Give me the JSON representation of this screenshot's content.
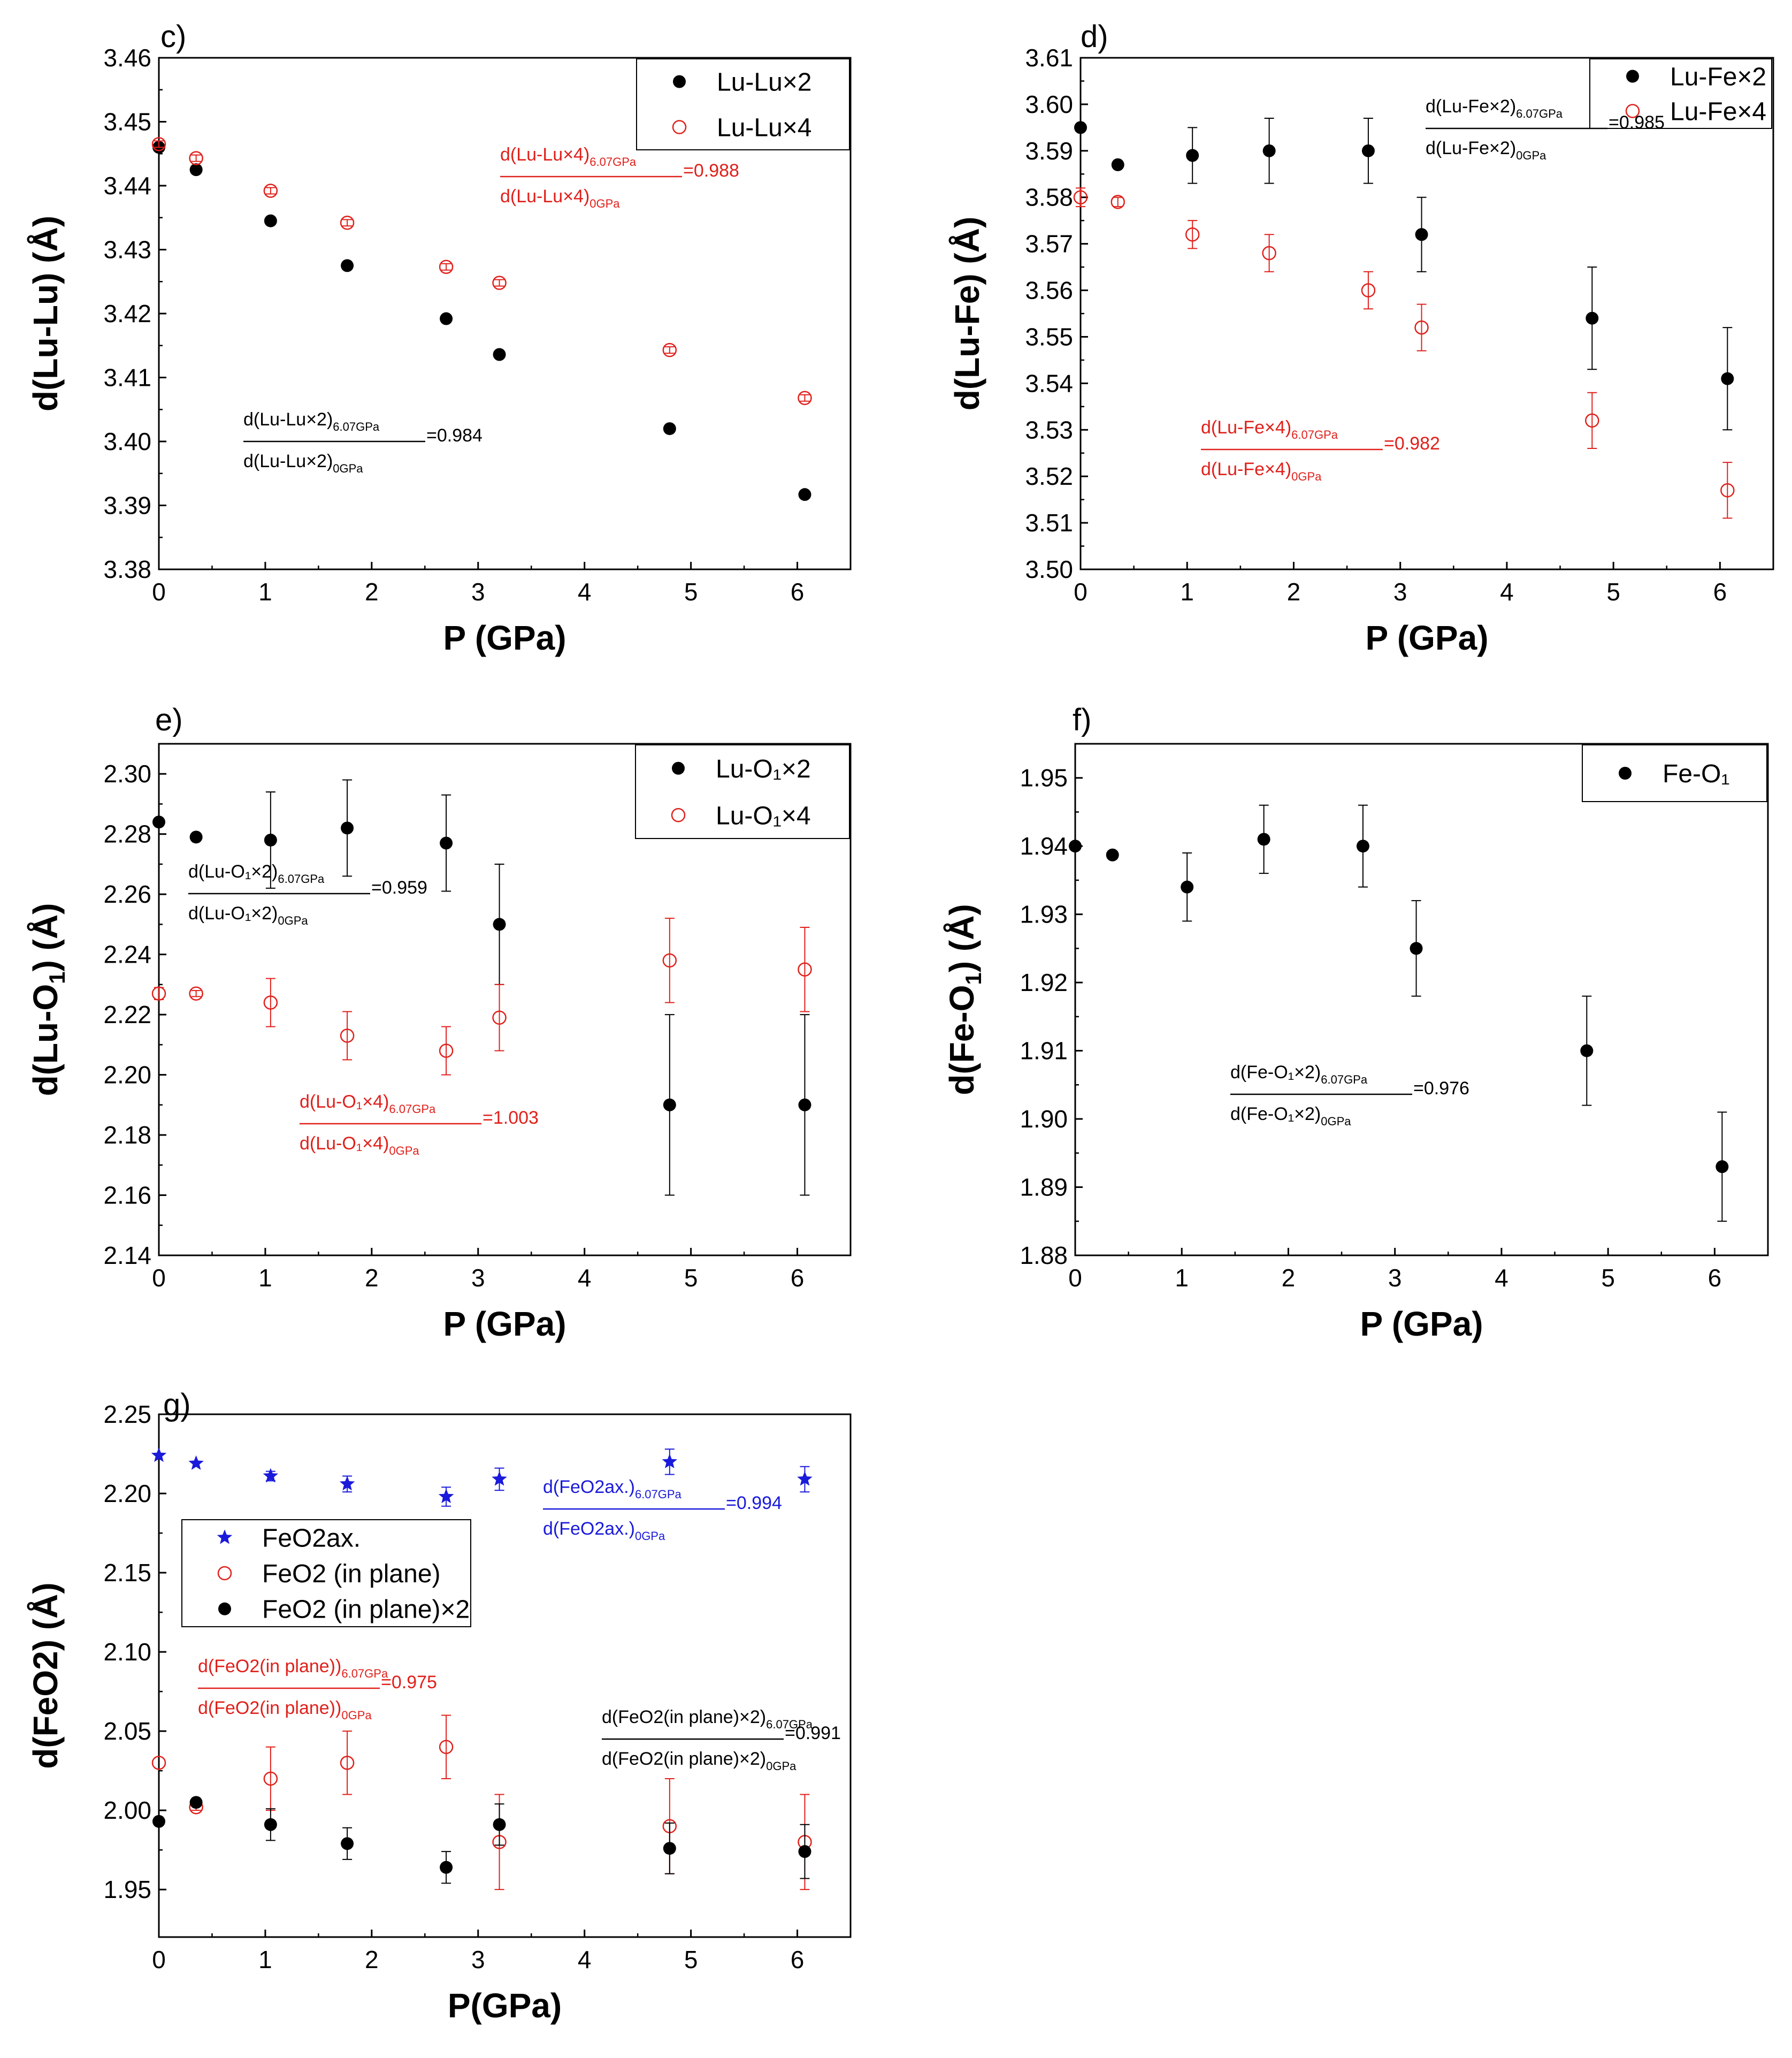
{
  "chart_data": [
    {
      "type": "scatter",
      "panel_label": "c)",
      "xlabel": "P (GPa)",
      "ylabel_parts": [
        "d(Lu-Lu) (Å)"
      ],
      "xlim": [
        0,
        6.5
      ],
      "ylim": [
        3.38,
        3.46
      ],
      "xticks": [
        "0",
        "1",
        "2",
        "3",
        "4",
        "5",
        "6"
      ],
      "yticks": [
        "3.38",
        "3.39",
        "3.40",
        "3.41",
        "3.42",
        "3.43",
        "3.44",
        "3.45",
        "3.46"
      ],
      "legend": [
        "Lu-Lu×2",
        "Lu-Lu×4"
      ],
      "series": [
        {
          "name": "Lu-Lu×2",
          "marker": "filled",
          "color": "#000000",
          "x": [
            0,
            0.35,
            1.05,
            1.77,
            2.7,
            3.2,
            4.8,
            6.07
          ],
          "y": [
            3.446,
            3.4425,
            3.4345,
            3.4275,
            3.4192,
            3.4136,
            3.402,
            3.3917
          ],
          "err": [
            0,
            0,
            0,
            0,
            0,
            0,
            0,
            0
          ]
        },
        {
          "name": "Lu-Lu×4",
          "marker": "open",
          "color": "#e0201b",
          "x": [
            0,
            0.35,
            1.05,
            1.77,
            2.7,
            3.2,
            4.8,
            6.07
          ],
          "y": [
            3.4465,
            3.4443,
            3.4392,
            3.4342,
            3.4273,
            3.4248,
            3.4143,
            3.4068
          ],
          "err": [
            0.0005,
            0.0005,
            0.0005,
            0.0005,
            0.0005,
            0.0005,
            0.0005,
            0.0005
          ]
        }
      ],
      "annotations": [
        {
          "num": "d(Lu-Lu×4)",
          "den": "d(Lu-Lu×4)",
          "sub_num": "6.07GPa",
          "sub_den": "0GPa",
          "ratio": "=0.988",
          "color": "#e0201b"
        },
        {
          "num": "d(Lu-Lu×2)",
          "den": "d(Lu-Lu×2)",
          "sub_num": "6.07GPa",
          "sub_den": "0GPa",
          "ratio": "=0.984",
          "color": "#000000"
        }
      ]
    },
    {
      "type": "scatter",
      "panel_label": "d)",
      "xlabel": "P (GPa)",
      "ylabel_parts": [
        "d(Lu-Fe) (Å)"
      ],
      "xlim": [
        0,
        6.5
      ],
      "ylim": [
        3.5,
        3.61
      ],
      "xticks": [
        "0",
        "1",
        "2",
        "3",
        "4",
        "5",
        "6"
      ],
      "yticks": [
        "3.50",
        "3.51",
        "3.52",
        "3.53",
        "3.54",
        "3.55",
        "3.56",
        "3.57",
        "3.58",
        "3.59",
        "3.60",
        "3.61"
      ],
      "legend": [
        "Lu-Fe×2",
        "Lu-Fe×4"
      ],
      "series": [
        {
          "name": "Lu-Fe×2",
          "marker": "filled",
          "color": "#000000",
          "x": [
            0,
            0.35,
            1.05,
            1.77,
            2.7,
            3.2,
            4.8,
            6.07
          ],
          "y": [
            3.595,
            3.587,
            3.589,
            3.59,
            3.59,
            3.572,
            3.554,
            3.541
          ],
          "err": [
            0,
            0,
            0.006,
            0.007,
            0.007,
            0.008,
            0.011,
            0.011
          ]
        },
        {
          "name": "Lu-Fe×4",
          "marker": "open",
          "color": "#e0201b",
          "x": [
            0,
            0.35,
            1.05,
            1.77,
            2.7,
            3.2,
            4.8,
            6.07
          ],
          "y": [
            3.58,
            3.579,
            3.572,
            3.568,
            3.56,
            3.552,
            3.532,
            3.517
          ],
          "err": [
            0.002,
            0.001,
            0.003,
            0.004,
            0.004,
            0.005,
            0.006,
            0.006
          ]
        }
      ],
      "annotations": [
        {
          "num": "d(Lu-Fe×2)",
          "den": "d(Lu-Fe×2)",
          "sub_num": "6.07GPa",
          "sub_den": "0GPa",
          "ratio": "=0.985",
          "color": "#000000"
        },
        {
          "num": "d(Lu-Fe×4)",
          "den": "d(Lu-Fe×4)",
          "sub_num": "6.07GPa",
          "sub_den": "0GPa",
          "ratio": "=0.982",
          "color": "#e0201b"
        }
      ]
    },
    {
      "type": "scatter",
      "panel_label": "e)",
      "xlabel": "P (GPa)",
      "ylabel_parts": [
        "d(Lu-O",
        "1",
        ") (Å)"
      ],
      "xlim": [
        0,
        6.5
      ],
      "ylim": [
        2.14,
        2.31
      ],
      "xticks": [
        "0",
        "1",
        "2",
        "3",
        "4",
        "5",
        "6"
      ],
      "yticks": [
        "2.14",
        "2.16",
        "2.18",
        "2.20",
        "2.22",
        "2.24",
        "2.26",
        "2.28",
        "2.30"
      ],
      "legend": [
        "Lu-O₁×2",
        "Lu-O₁×4"
      ],
      "series": [
        {
          "name": "Lu-O₁×2",
          "marker": "filled",
          "color": "#000000",
          "x": [
            0,
            0.35,
            1.05,
            1.77,
            2.7,
            3.2,
            4.8,
            6.07
          ],
          "y": [
            2.284,
            2.279,
            2.278,
            2.282,
            2.277,
            2.25,
            2.19,
            2.19
          ],
          "err": [
            0,
            0,
            0.016,
            0.016,
            0.016,
            0.02,
            0.03,
            0.03
          ]
        },
        {
          "name": "Lu-O₁×4",
          "marker": "open",
          "color": "#e0201b",
          "x": [
            0,
            0.35,
            1.05,
            1.77,
            2.7,
            3.2,
            4.8,
            6.07
          ],
          "y": [
            2.227,
            2.227,
            2.224,
            2.213,
            2.208,
            2.219,
            2.238,
            2.235
          ],
          "err": [
            0.002,
            0.001,
            0.008,
            0.008,
            0.008,
            0.011,
            0.014,
            0.014
          ]
        }
      ],
      "annotations": [
        {
          "num": "d(Lu-O₁×2)",
          "den": "d(Lu-O₁×2)",
          "sub_num": "6.07GPa",
          "sub_den": "0GPa",
          "ratio": "=0.959",
          "color": "#000000"
        },
        {
          "num": "d(Lu-O₁×4)",
          "den": "d(Lu-O₁×4)",
          "sub_num": "6.07GPa",
          "sub_den": "0GPa",
          "ratio": "=1.003",
          "color": "#e0201b"
        }
      ]
    },
    {
      "type": "scatter",
      "panel_label": "f)",
      "xlabel": "P (GPa)",
      "ylabel_parts": [
        "d(Fe-O",
        "1",
        ") (Å)"
      ],
      "xlim": [
        0,
        6.5
      ],
      "ylim": [
        1.88,
        1.955
      ],
      "xticks": [
        "0",
        "1",
        "2",
        "3",
        "4",
        "5",
        "6"
      ],
      "yticks": [
        "1.88",
        "1.89",
        "1.90",
        "1.91",
        "1.92",
        "1.93",
        "1.94",
        "1.95"
      ],
      "legend": [
        "Fe-O₁"
      ],
      "series": [
        {
          "name": "Fe-O₁",
          "marker": "filled",
          "color": "#000000",
          "x": [
            0,
            0.35,
            1.05,
            1.77,
            2.7,
            3.2,
            4.8,
            6.07
          ],
          "y": [
            1.94,
            1.9387,
            1.934,
            1.941,
            1.94,
            1.925,
            1.91,
            1.893
          ],
          "err": [
            0,
            0,
            0.005,
            0.005,
            0.006,
            0.007,
            0.008,
            0.008
          ]
        }
      ],
      "annotations": [
        {
          "num": "d(Fe-O₁×2)",
          "den": "d(Fe-O₁×2)",
          "sub_num": "6.07GPa",
          "sub_den": "0GPa",
          "ratio": "=0.976",
          "color": "#000000"
        }
      ]
    },
    {
      "type": "scatter",
      "panel_label": "g)",
      "xlabel": "P(GPa)",
      "ylabel_parts": [
        "d(FeO2) (Å)"
      ],
      "xlim": [
        0,
        6.5
      ],
      "ylim": [
        1.92,
        2.25
      ],
      "xticks": [
        "0",
        "1",
        "2",
        "3",
        "4",
        "5",
        "6"
      ],
      "yticks": [
        "1.95",
        "2.00",
        "2.05",
        "2.10",
        "2.15",
        "2.20",
        "2.25"
      ],
      "legend": [
        "FeO2ax.",
        "FeO2 (in plane)",
        "FeO2 (in plane)×2"
      ],
      "series": [
        {
          "name": "FeO2ax.",
          "marker": "star",
          "color": "#1a1adb",
          "x": [
            0,
            0.35,
            1.05,
            1.77,
            2.7,
            3.2,
            4.8,
            6.07
          ],
          "y": [
            2.224,
            2.219,
            2.211,
            2.206,
            2.198,
            2.209,
            2.22,
            2.209
          ],
          "err": [
            0,
            0,
            0.003,
            0.005,
            0.006,
            0.007,
            0.008,
            0.008
          ]
        },
        {
          "name": "FeO2 (in plane)",
          "marker": "open",
          "color": "#e0201b",
          "x": [
            0,
            0.35,
            1.05,
            1.77,
            2.7,
            3.2,
            4.8,
            6.07
          ],
          "y": [
            2.03,
            2.002,
            2.02,
            2.03,
            2.04,
            1.98,
            1.99,
            1.98
          ],
          "err": [
            0,
            0.002,
            0.02,
            0.02,
            0.02,
            0.03,
            0.03,
            0.03
          ]
        },
        {
          "name": "FeO2 (in plane)×2",
          "marker": "filled",
          "color": "#000000",
          "x": [
            0,
            0.35,
            1.05,
            1.77,
            2.7,
            3.2,
            4.8,
            6.07
          ],
          "y": [
            1.993,
            2.005,
            1.991,
            1.979,
            1.964,
            1.991,
            1.976,
            1.974
          ],
          "err": [
            0,
            0,
            0.01,
            0.01,
            0.01,
            0.013,
            0.016,
            0.017
          ]
        }
      ],
      "annotations": [
        {
          "num": "d(FeO2ax.)",
          "den": "d(FeO2ax.)",
          "sub_num": "6.07GPa",
          "sub_den": "0GPa",
          "ratio": "=0.994",
          "color": "#1a1adb"
        },
        {
          "num": "d(FeO2(in plane))",
          "den": "d(FeO2(in plane))",
          "sub_num": "6.07GPa",
          "sub_den": "0GPa",
          "ratio": "=0.975",
          "color": "#e0201b"
        },
        {
          "num": "d(FeO2(in plane)×2)",
          "den": "d(FeO2(in plane)×2)",
          "sub_num": "6.07GPa",
          "sub_den": "0GPa",
          "ratio": "=0.991",
          "color": "#000000"
        }
      ]
    }
  ]
}
